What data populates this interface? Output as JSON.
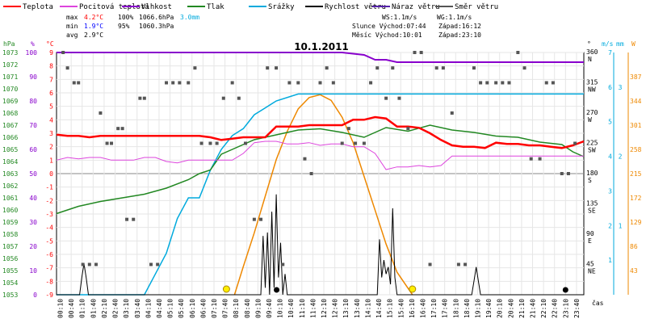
{
  "chart_data": {
    "type": "line",
    "title": "10.1.2011",
    "legend": [
      {
        "name": "Teplota",
        "color": "#ff0000"
      },
      {
        "name": "Pocitová teplota",
        "color": "#dd44dd"
      },
      {
        "name": "Vlhkost",
        "color": "#8800cc"
      },
      {
        "name": "Tlak",
        "color": "#228822"
      },
      {
        "name": "Srážky",
        "color": "#00aadd"
      },
      {
        "name": "Rychlost větru",
        "color": "#000000"
      },
      {
        "name": "Náraz větru",
        "color": "#5522aa"
      },
      {
        "name": "Směr větru",
        "color": "#555555"
      }
    ],
    "stats": {
      "max": {
        "label": "max",
        "temp": "4.2°C",
        "hum": "100%",
        "press": "1066.6hPa",
        "rain": "3.0mm"
      },
      "min": {
        "label": "min",
        "temp": "1.9°C",
        "hum": "95%",
        "press": "1060.3hPa"
      },
      "avg": {
        "label": "avg",
        "temp": "2.9°C"
      }
    },
    "info": {
      "ws": "WS:1.1m/s",
      "wg": "WG:1.1m/s",
      "sunrise": "Slunce Východ:07:44",
      "sunset": "Západ:16:12",
      "moonrise": "Měsíc Východ:10:01",
      "moonset": "Západ:23:10"
    },
    "axes": {
      "hpa": {
        "label": "hPa",
        "ticks": [
          "1073",
          "1072",
          "1071",
          "1070",
          "1069",
          "1068",
          "1067",
          "1066",
          "1065",
          "1064",
          "1063",
          "1062",
          "1061",
          "1060",
          "1059",
          "1058",
          "1057",
          "1056",
          "1055",
          "1054",
          "1053"
        ],
        "range": [
          1053,
          1073
        ]
      },
      "pct": {
        "label": "%",
        "ticks": [
          "100",
          "90",
          "80",
          "70",
          "60",
          "50",
          "40",
          "30",
          "20",
          "10",
          "0"
        ]
      },
      "degc": {
        "label": "°C",
        "ticks": [
          "9",
          "8",
          "7",
          "6",
          "5",
          "4",
          "3",
          "2",
          "1",
          "0",
          "-1",
          "-2",
          "-3",
          "-4",
          "-5",
          "-6",
          "-7",
          "-8",
          "-9"
        ],
        "range": [
          -9,
          9
        ]
      },
      "dir": {
        "label": "°",
        "ticks": [
          {
            "deg": "360",
            "pt": "N"
          },
          {
            "deg": "315",
            "pt": "NW"
          },
          {
            "deg": "270",
            "pt": "W"
          },
          {
            "deg": "225",
            "pt": "SW"
          },
          {
            "deg": "180",
            "pt": "S"
          },
          {
            "deg": "135",
            "pt": "SE"
          },
          {
            "deg": "90",
            "pt": "E"
          },
          {
            "deg": "45",
            "pt": "NE"
          }
        ],
        "range": [
          0,
          360
        ]
      },
      "ms": {
        "label": "m/s",
        "ticks": [
          "7",
          "6",
          "5",
          "4",
          "3",
          "2",
          "1"
        ],
        "range": [
          0,
          7
        ]
      },
      "mm": {
        "label": "mm",
        "ticks": [
          "3",
          "2",
          "1"
        ],
        "range": [
          0,
          3.5
        ]
      },
      "w": {
        "label": "W",
        "ticks": [
          "387",
          "344",
          "301",
          "258",
          "215",
          "172",
          "129",
          "86",
          "43"
        ],
        "range": [
          0,
          430
        ]
      },
      "time": {
        "label": "čas",
        "ticks": [
          "00:10",
          "00:40",
          "01:10",
          "01:40",
          "02:10",
          "02:40",
          "03:10",
          "03:40",
          "04:10",
          "04:40",
          "05:10",
          "05:40",
          "06:10",
          "06:40",
          "07:10",
          "07:40",
          "08:10",
          "08:40",
          "09:10",
          "09:40",
          "10:10",
          "10:40",
          "11:10",
          "11:40",
          "12:10",
          "12:40",
          "13:10",
          "13:40",
          "14:10",
          "14:40",
          "15:10",
          "15:40",
          "16:10",
          "16:40",
          "17:10",
          "17:40",
          "18:10",
          "18:40",
          "19:10",
          "19:40",
          "20:10",
          "20:40",
          "21:10",
          "21:40",
          "22:10",
          "22:40",
          "23:10",
          "23:40"
        ]
      }
    },
    "series": [
      {
        "name": "Teplota",
        "unit": "°C",
        "color": "#ff0000",
        "x": [
          0,
          0.5,
          1,
          1.5,
          2,
          2.5,
          3,
          3.5,
          4,
          4.5,
          5,
          5.5,
          6,
          6.5,
          7,
          7.5,
          8,
          8.5,
          9,
          9.5,
          10,
          10.5,
          11,
          11.5,
          12,
          12.5,
          13,
          13.5,
          14,
          14.5,
          15,
          15.5,
          16,
          16.5,
          17,
          17.5,
          18,
          18.5,
          19,
          19.5,
          20,
          20.5,
          21,
          21.5,
          22,
          22.5,
          23,
          23.5,
          24
        ],
        "values": [
          2.9,
          2.8,
          2.8,
          2.7,
          2.8,
          2.8,
          2.8,
          2.8,
          2.8,
          2.8,
          2.8,
          2.8,
          2.8,
          2.8,
          2.7,
          2.5,
          2.6,
          2.7,
          2.7,
          2.7,
          3.5,
          3.5,
          3.5,
          3.6,
          3.6,
          3.6,
          3.6,
          4.0,
          4.0,
          4.2,
          4.1,
          3.5,
          3.5,
          3.4,
          3.0,
          2.5,
          2.1,
          2.0,
          2.0,
          1.9,
          2.3,
          2.2,
          2.2,
          2.1,
          2.1,
          2.0,
          1.9,
          2.1,
          2.4
        ]
      },
      {
        "name": "Pocitová teplota",
        "unit": "°C",
        "color": "#dd44dd",
        "x": [
          0,
          0.5,
          1,
          1.5,
          2,
          2.5,
          3,
          3.5,
          4,
          4.5,
          5,
          5.5,
          6,
          6.5,
          7,
          7.5,
          8,
          8.5,
          9,
          9.5,
          10,
          10.5,
          11,
          11.5,
          12,
          12.5,
          13,
          13.5,
          14,
          14.5,
          15,
          15.5,
          16,
          16.5,
          17,
          17.5,
          18,
          18.5,
          19,
          19.5,
          20,
          20.5,
          21,
          21.5,
          22,
          22.5,
          23,
          23.5,
          24
        ],
        "values": [
          1.0,
          1.2,
          1.1,
          1.2,
          1.2,
          1.0,
          1.0,
          1.0,
          1.2,
          1.2,
          0.9,
          0.8,
          1.0,
          1.0,
          1.0,
          1.0,
          1.0,
          1.5,
          2.3,
          2.4,
          2.4,
          2.2,
          2.2,
          2.3,
          2.1,
          2.2,
          2.2,
          2.0,
          2.0,
          1.5,
          0.3,
          0.5,
          0.5,
          0.6,
          0.5,
          0.6,
          1.3,
          1.3,
          1.3,
          1.3,
          1.3,
          1.3,
          1.3,
          1.3,
          1.3,
          1.3,
          1.3,
          1.3,
          1.3
        ]
      },
      {
        "name": "Vlhkost",
        "unit": "%",
        "color": "#8800cc",
        "x": [
          0,
          1,
          2,
          3,
          4,
          5,
          6,
          7,
          8,
          9,
          10,
          11,
          12,
          13,
          14,
          14.5,
          15,
          15.5,
          16,
          17,
          18,
          19,
          20,
          21,
          22,
          23,
          24
        ],
        "values": [
          100,
          100,
          100,
          100,
          100,
          100,
          100,
          100,
          100,
          100,
          100,
          100,
          100,
          100,
          99,
          97,
          97,
          96,
          96,
          96,
          96,
          96,
          96,
          96,
          96,
          96,
          96
        ]
      },
      {
        "name": "Tlak",
        "unit": "hPa",
        "color": "#228822",
        "x": [
          0,
          1,
          2,
          3,
          4,
          5,
          6,
          6.5,
          7,
          7.5,
          8,
          9,
          10,
          11,
          12,
          13,
          14,
          15,
          16,
          17,
          18,
          19,
          20,
          21,
          22,
          23,
          23.5,
          24
        ],
        "values": [
          1059.7,
          1060.3,
          1060.7,
          1061.0,
          1061.3,
          1061.8,
          1062.5,
          1063.0,
          1063.3,
          1064.6,
          1065.0,
          1065.8,
          1066.2,
          1066.6,
          1066.7,
          1066.4,
          1066.0,
          1066.8,
          1066.5,
          1067.0,
          1066.6,
          1066.4,
          1066.1,
          1066.0,
          1065.6,
          1065.4,
          1064.8,
          1064.4
        ]
      },
      {
        "name": "Srážky",
        "unit": "mm",
        "color": "#00aadd",
        "x": [
          0,
          4.0,
          4.5,
          5.0,
          5.5,
          6.0,
          6.5,
          7,
          7.5,
          8,
          8.5,
          9,
          9.5,
          10,
          11,
          12,
          13,
          14,
          15,
          16,
          17,
          18,
          19,
          20,
          21,
          22,
          23,
          24
        ],
        "values": [
          0,
          0,
          0.3,
          0.6,
          1.1,
          1.4,
          1.4,
          1.8,
          2.1,
          2.3,
          2.4,
          2.6,
          2.7,
          2.8,
          2.9,
          2.9,
          2.9,
          2.9,
          2.9,
          2.9,
          2.9,
          2.9,
          2.9,
          2.9,
          2.9,
          2.9,
          2.9,
          2.9
        ]
      },
      {
        "name": "Sluneční záření",
        "unit": "W",
        "color": "#ee8800",
        "x": [
          8.1,
          8.5,
          9,
          9.5,
          10,
          10.5,
          11,
          11.5,
          12,
          12.5,
          13,
          13.5,
          14,
          14.5,
          15,
          15.5,
          16.2
        ],
        "values": [
          0,
          50,
          110,
          175,
          240,
          290,
          330,
          350,
          355,
          345,
          315,
          270,
          210,
          150,
          90,
          40,
          0
        ]
      },
      {
        "name": "Rychlost větru",
        "unit": "m/s",
        "color": "#000000",
        "x": [
          0,
          1.05,
          1.15,
          1.25,
          1.35,
          1.45,
          9.3,
          9.4,
          9.5,
          9.6,
          9.7,
          9.8,
          9.9,
          10.0,
          10.1,
          10.2,
          10.3,
          10.4,
          10.5,
          14.6,
          14.7,
          14.8,
          14.9,
          15.0,
          15.1,
          15.2,
          15.3,
          15.4,
          15.5,
          15.6,
          15.7,
          18.9,
          19.0,
          19.1,
          19.2,
          19.3,
          24
        ],
        "values": [
          0,
          0,
          0.5,
          0.9,
          0.5,
          0,
          0,
          1.7,
          0.2,
          1.8,
          0,
          2.4,
          0.2,
          2.9,
          0.5,
          1.5,
          0,
          0.6,
          0,
          0,
          1.6,
          0.5,
          1.0,
          0.6,
          0.8,
          0.3,
          2.5,
          0.5,
          0,
          0,
          0,
          0,
          0.4,
          0.8,
          0.4,
          0,
          0
        ]
      },
      {
        "name": "Směr větru",
        "unit": "°",
        "color": "#555555",
        "x": [
          0.3,
          0.5,
          0.8,
          1,
          1.2,
          1.5,
          1.8,
          2,
          2.3,
          2.5,
          2.8,
          3,
          3.2,
          3.5,
          3.8,
          4,
          4.3,
          4.6,
          5,
          5.3,
          5.6,
          6,
          6.3,
          6.6,
          7,
          7.3,
          7.6,
          8,
          8.3,
          8.6,
          9,
          9.3,
          9.6,
          10,
          10.3,
          10.6,
          11,
          11.3,
          11.6,
          12,
          12.3,
          12.6,
          13,
          13.3,
          13.6,
          14,
          14.3,
          14.6,
          15,
          15.3,
          15.6,
          16,
          16.3,
          16.6,
          17,
          17.3,
          17.6,
          18,
          18.3,
          18.6,
          19,
          19.3,
          19.6,
          20,
          20.3,
          20.6,
          21,
          21.3,
          21.6,
          22,
          22.3,
          22.6,
          23,
          23.3,
          23.6
        ],
        "values": [
          360,
          337,
          315,
          315,
          45,
          45,
          45,
          270,
          225,
          225,
          247,
          247,
          112,
          112,
          292,
          292,
          45,
          45,
          315,
          315,
          315,
          315,
          337,
          225,
          225,
          225,
          292,
          315,
          292,
          225,
          112,
          112,
          337,
          337,
          45,
          315,
          315,
          202,
          180,
          315,
          337,
          315,
          225,
          247,
          225,
          225,
          315,
          337,
          292,
          337,
          292,
          247,
          360,
          360,
          45,
          337,
          337,
          270,
          45,
          45,
          337,
          315,
          315,
          315,
          315,
          315,
          360,
          337,
          202,
          202,
          315,
          315,
          180,
          180,
          225
        ]
      }
    ],
    "markers": {
      "sunrise_time": "07:44",
      "sunset_time": "16:12",
      "moonrise_time": "10:01",
      "moonset_time": "23:10"
    }
  }
}
